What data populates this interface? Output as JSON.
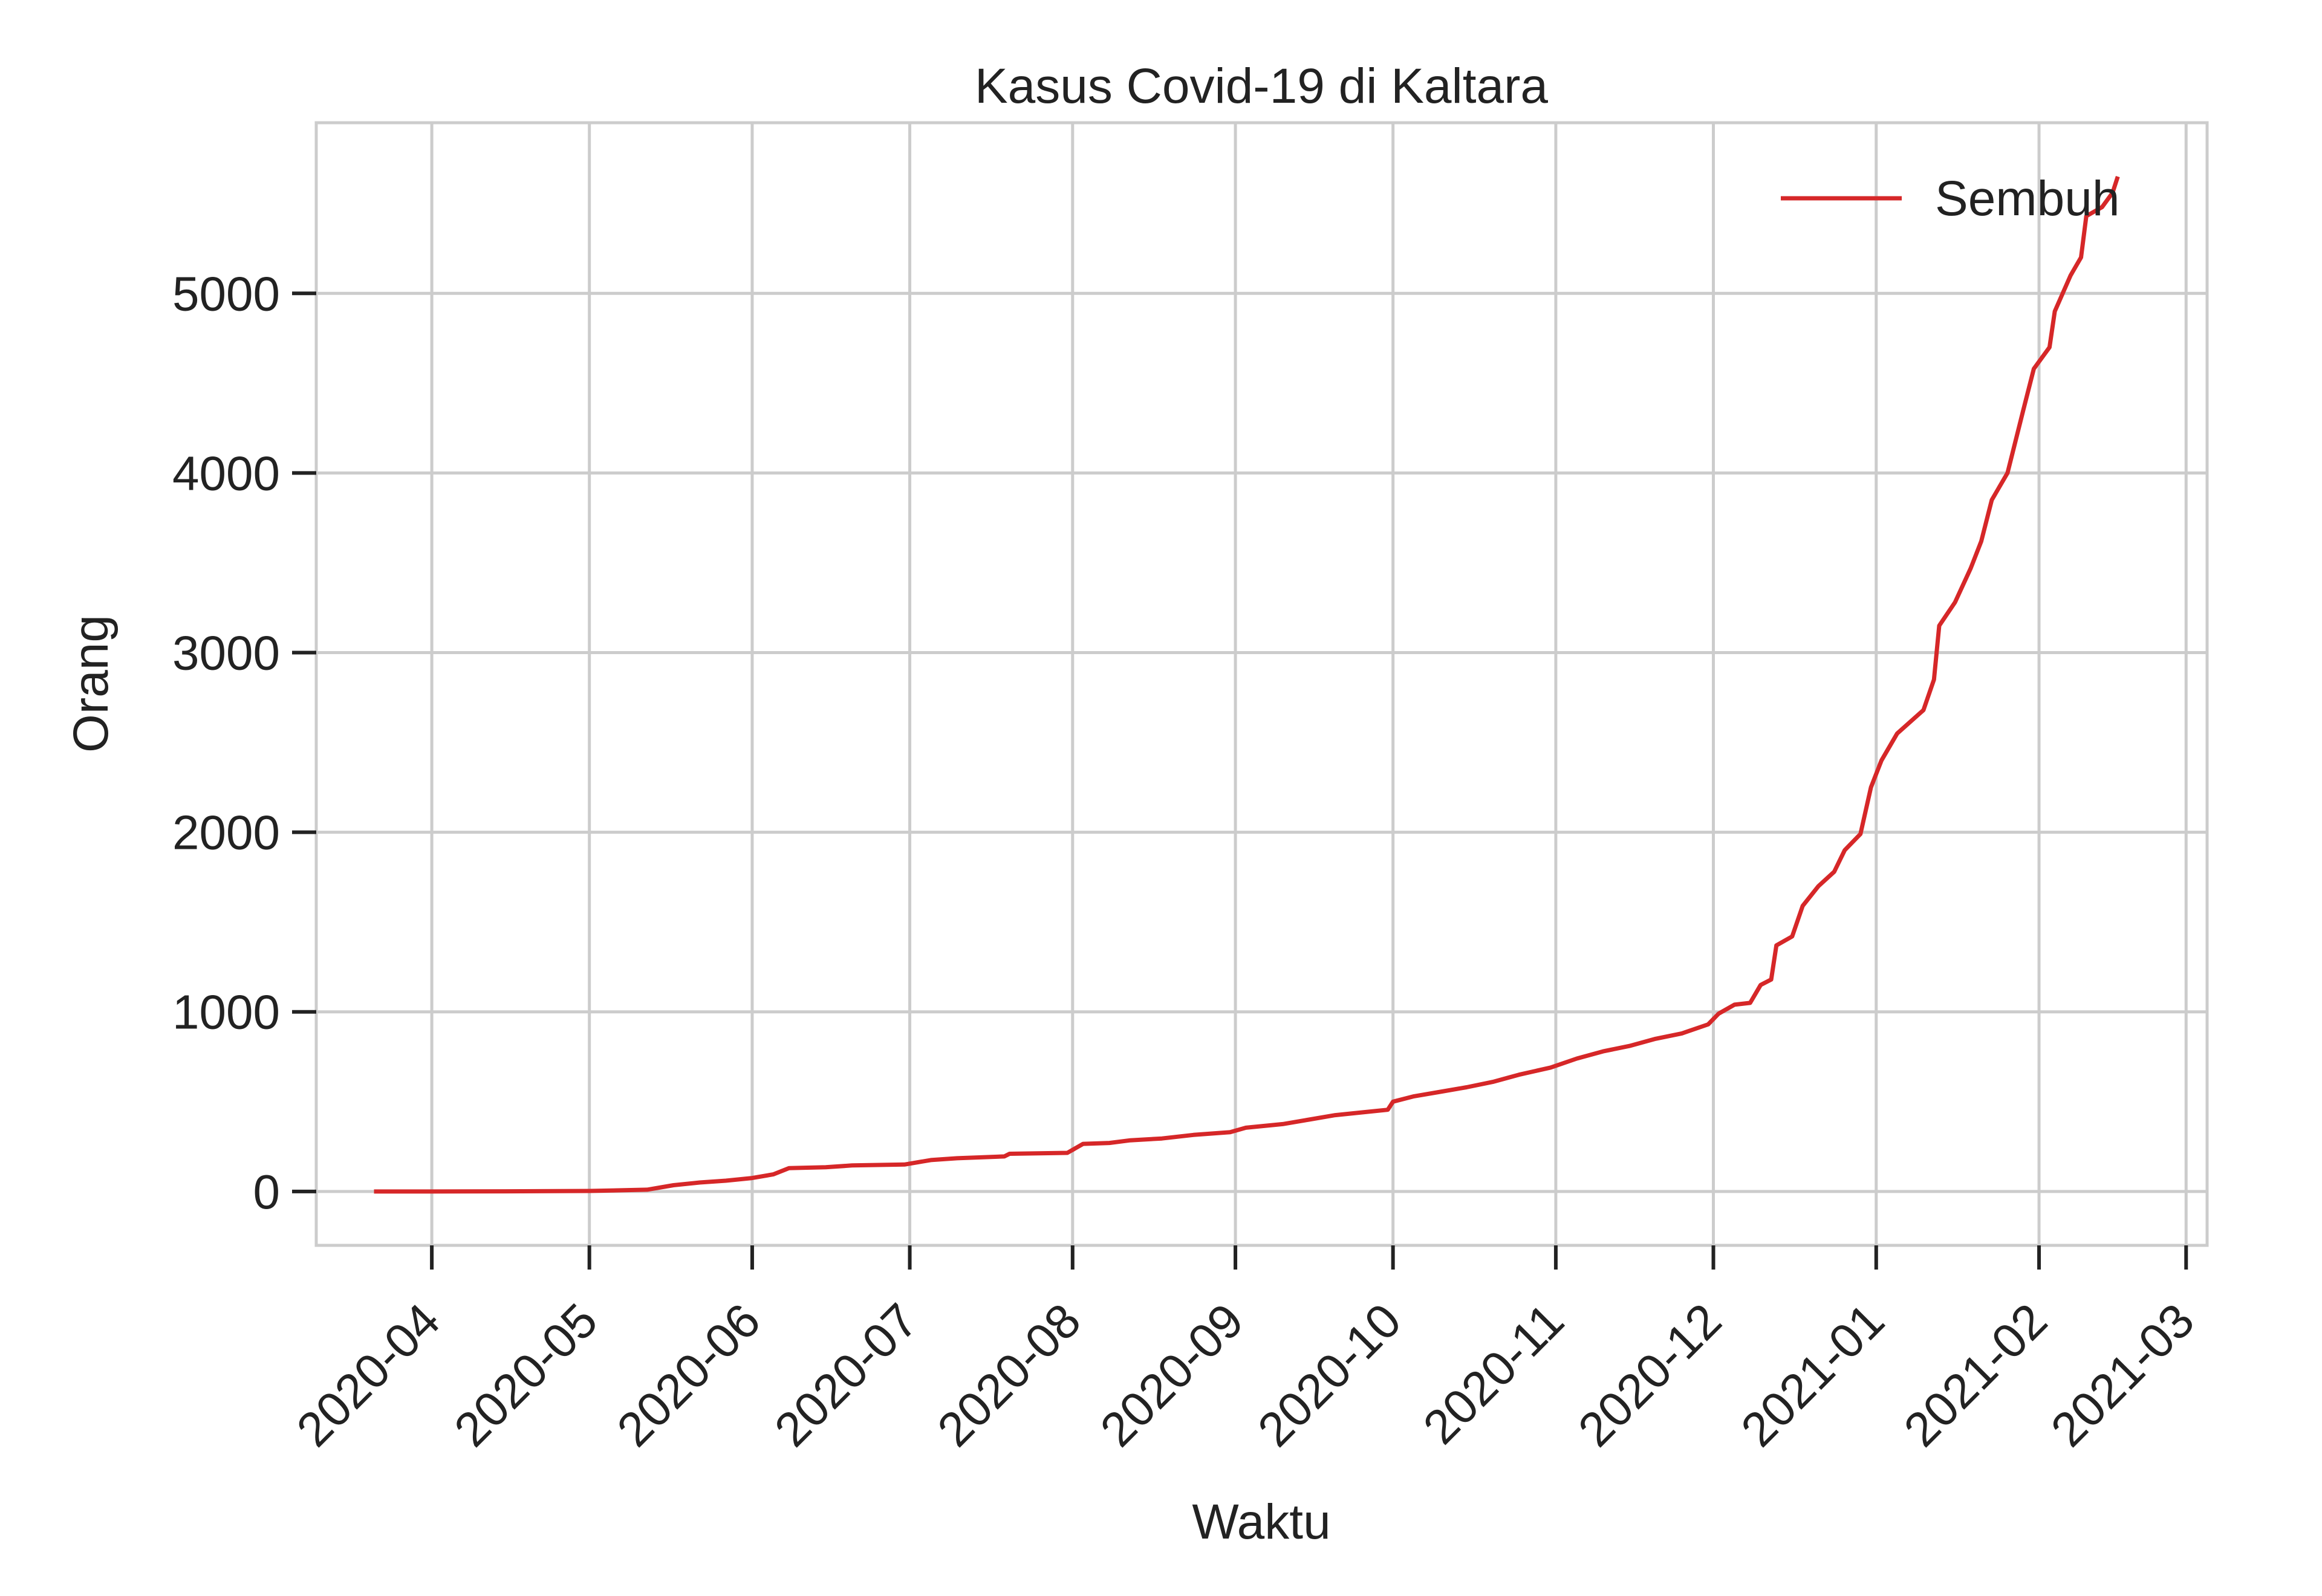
{
  "chart_data": {
    "type": "line",
    "title": "Kasus Covid-19 di Kaltara",
    "xlabel": "Waktu",
    "ylabel": "Orang",
    "x_is_date": true,
    "xlim": [
      "2020-03-10",
      "2021-03-05"
    ],
    "ylim": [
      -300,
      5950
    ],
    "x_ticks": [
      "2020-04-01",
      "2020-05-01",
      "2020-06-01",
      "2020-07-01",
      "2020-08-01",
      "2020-09-01",
      "2020-10-01",
      "2020-11-01",
      "2020-12-01",
      "2021-01-01",
      "2021-02-01",
      "2021-03-01"
    ],
    "x_tick_labels": [
      "2020-04",
      "2020-05",
      "2020-06",
      "2020-07",
      "2020-08",
      "2020-09",
      "2020-10",
      "2020-11",
      "2020-12",
      "2021-01",
      "2021-02",
      "2021-03"
    ],
    "y_ticks": [
      0,
      1000,
      2000,
      3000,
      4000,
      5000
    ],
    "y_tick_labels": [
      "0",
      "1000",
      "2000",
      "3000",
      "4000",
      "5000"
    ],
    "grid": true,
    "legend_position": "top-right",
    "series": [
      {
        "name": "Sembuh",
        "color": "#d62728",
        "points": [
          [
            "2020-03-21",
            0
          ],
          [
            "2020-04-01",
            0
          ],
          [
            "2020-04-15",
            1
          ],
          [
            "2020-05-01",
            3
          ],
          [
            "2020-05-12",
            10
          ],
          [
            "2020-05-17",
            35
          ],
          [
            "2020-05-22",
            50
          ],
          [
            "2020-05-27",
            60
          ],
          [
            "2020-06-01",
            75
          ],
          [
            "2020-06-05",
            95
          ],
          [
            "2020-06-08",
            130
          ],
          [
            "2020-06-15",
            135
          ],
          [
            "2020-06-20",
            145
          ],
          [
            "2020-06-30",
            150
          ],
          [
            "2020-07-05",
            175
          ],
          [
            "2020-07-10",
            185
          ],
          [
            "2020-07-19",
            195
          ],
          [
            "2020-07-20",
            210
          ],
          [
            "2020-07-31",
            215
          ],
          [
            "2020-08-03",
            265
          ],
          [
            "2020-08-08",
            270
          ],
          [
            "2020-08-12",
            285
          ],
          [
            "2020-08-18",
            295
          ],
          [
            "2020-08-24",
            315
          ],
          [
            "2020-08-31",
            330
          ],
          [
            "2020-09-03",
            355
          ],
          [
            "2020-09-10",
            375
          ],
          [
            "2020-09-15",
            400
          ],
          [
            "2020-09-20",
            425
          ],
          [
            "2020-09-25",
            440
          ],
          [
            "2020-09-30",
            455
          ],
          [
            "2020-10-01",
            500
          ],
          [
            "2020-10-05",
            530
          ],
          [
            "2020-10-10",
            555
          ],
          [
            "2020-10-15",
            580
          ],
          [
            "2020-10-20",
            610
          ],
          [
            "2020-10-25",
            650
          ],
          [
            "2020-10-31",
            690
          ],
          [
            "2020-11-05",
            740
          ],
          [
            "2020-11-10",
            780
          ],
          [
            "2020-11-15",
            810
          ],
          [
            "2020-11-20",
            850
          ],
          [
            "2020-11-25",
            880
          ],
          [
            "2020-11-30",
            930
          ],
          [
            "2020-12-02",
            990
          ],
          [
            "2020-12-05",
            1040
          ],
          [
            "2020-12-08",
            1050
          ],
          [
            "2020-12-10",
            1150
          ],
          [
            "2020-12-12",
            1180
          ],
          [
            "2020-12-13",
            1370
          ],
          [
            "2020-12-16",
            1420
          ],
          [
            "2020-12-18",
            1590
          ],
          [
            "2020-12-21",
            1700
          ],
          [
            "2020-12-24",
            1780
          ],
          [
            "2020-12-26",
            1900
          ],
          [
            "2020-12-29",
            1990
          ],
          [
            "2020-12-31",
            2250
          ],
          [
            "2021-01-02",
            2400
          ],
          [
            "2021-01-05",
            2550
          ],
          [
            "2021-01-10",
            2680
          ],
          [
            "2021-01-12",
            2850
          ],
          [
            "2021-01-13",
            3150
          ],
          [
            "2021-01-16",
            3280
          ],
          [
            "2021-01-19",
            3470
          ],
          [
            "2021-01-21",
            3620
          ],
          [
            "2021-01-23",
            3850
          ],
          [
            "2021-01-26",
            4000
          ],
          [
            "2021-01-29",
            4350
          ],
          [
            "2021-01-31",
            4580
          ],
          [
            "2021-02-03",
            4700
          ],
          [
            "2021-02-04",
            4900
          ],
          [
            "2021-02-07",
            5100
          ],
          [
            "2021-02-09",
            5200
          ],
          [
            "2021-02-10",
            5430
          ],
          [
            "2021-02-13",
            5480
          ],
          [
            "2021-02-15",
            5560
          ],
          [
            "2021-02-16",
            5650
          ]
        ]
      }
    ]
  }
}
